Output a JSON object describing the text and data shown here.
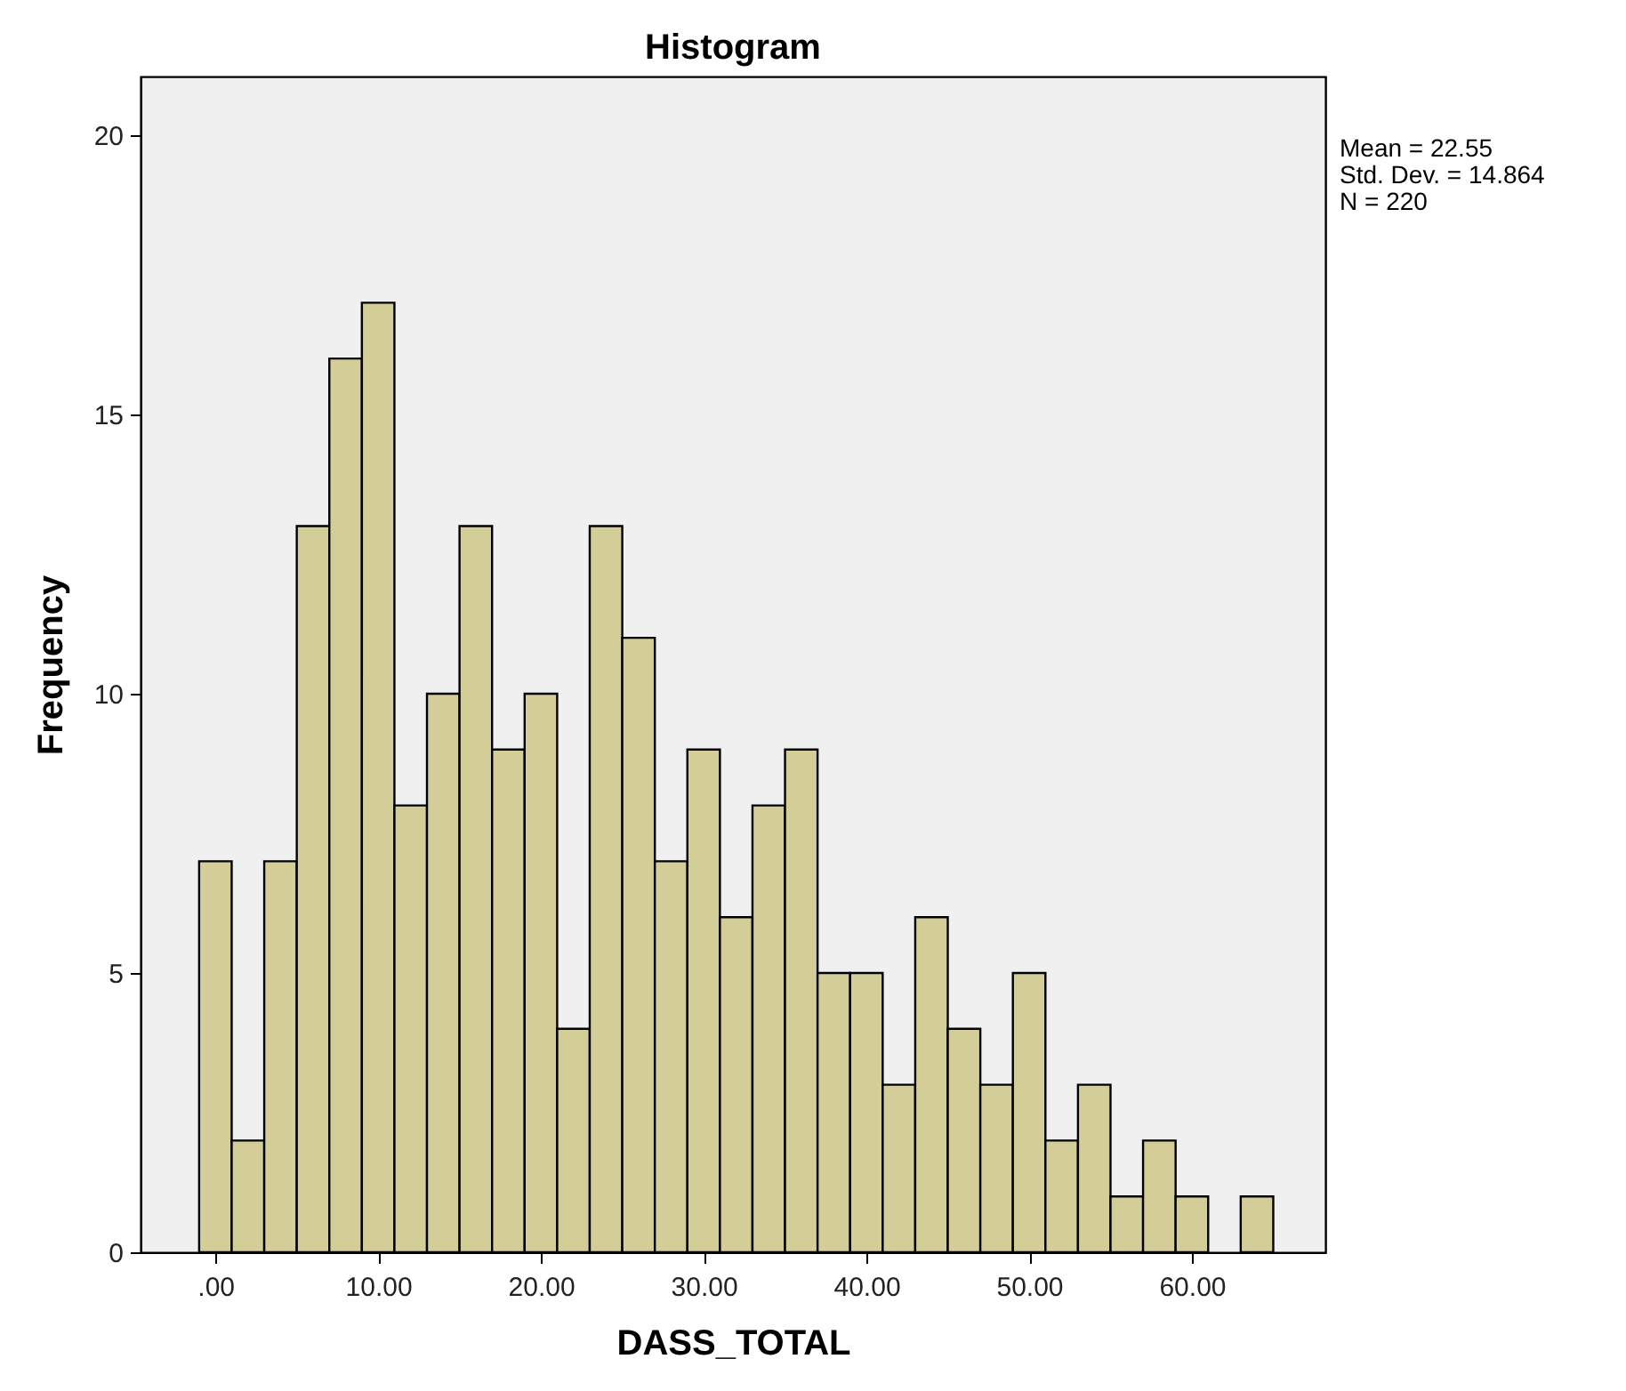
{
  "chart_data": {
    "type": "histogram",
    "title": "Histogram",
    "xlabel": "DASS_TOTAL",
    "ylabel": "Frequency",
    "bins": [
      -1,
      1,
      3,
      5,
      7,
      9,
      11,
      13,
      15,
      17,
      19,
      21,
      23,
      25,
      27,
      29,
      31,
      33,
      35,
      37,
      39,
      41,
      43,
      45,
      47,
      49,
      51,
      53,
      55,
      57,
      59,
      61,
      63,
      65
    ],
    "values": [
      7,
      2,
      7,
      13,
      16,
      17,
      8,
      10,
      13,
      9,
      10,
      4,
      13,
      11,
      7,
      9,
      6,
      8,
      9,
      5,
      5,
      3,
      6,
      4,
      3,
      5,
      2,
      3,
      1,
      2,
      1,
      0,
      1
    ],
    "color": "#d3ce97",
    "xlim": [
      -4.6,
      68.2
    ],
    "xticks": [
      {
        "value": 0,
        "label": ".00"
      },
      {
        "value": 10,
        "label": "10.00"
      },
      {
        "value": 20,
        "label": "20.00"
      },
      {
        "value": 30,
        "label": "30.00"
      },
      {
        "value": 40,
        "label": "40.00"
      },
      {
        "value": 50,
        "label": "50.00"
      },
      {
        "value": 60,
        "label": "60.00"
      }
    ],
    "ylim": [
      0,
      21.05
    ],
    "yticks": [
      0,
      5,
      10,
      15,
      20
    ],
    "grid": false,
    "annotations": [
      "Mean = 22.55",
      "Std. Dev. = 14.864",
      "N = 220"
    ]
  }
}
